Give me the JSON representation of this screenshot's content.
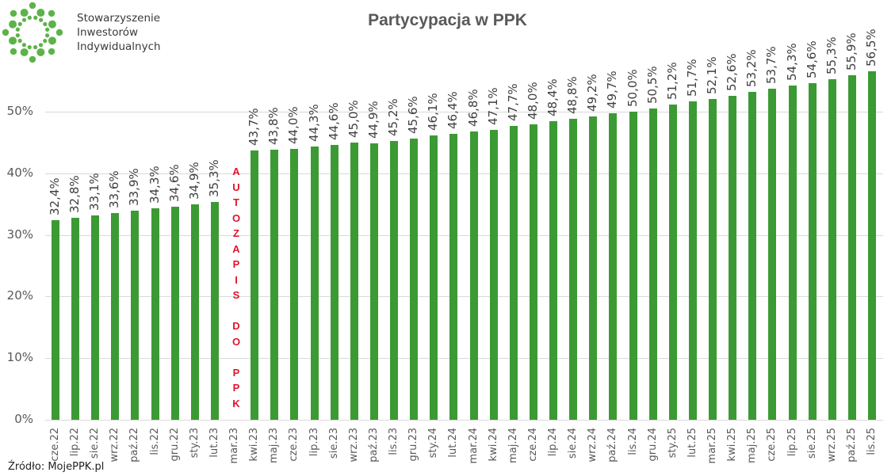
{
  "header": {
    "logo_lines": [
      "Stowarzyszenie",
      "Inwestorów",
      "Indywidualnych"
    ],
    "logo_icon": "ring-of-dots-icon",
    "title": "Partycypacja w PPK"
  },
  "footer": {
    "source": "Źródło: MojePPK.pl"
  },
  "annotation": {
    "letters": [
      "A",
      "U",
      "T",
      "O",
      "Z",
      "A",
      "P",
      "I",
      "S",
      "",
      "D",
      "O",
      "",
      "P",
      "P",
      "K"
    ],
    "text": "AUTOZAPIS DO PPK",
    "color": "#e0142c"
  },
  "colors": {
    "bar": "#3c9a35",
    "grid": "#d9d9d9",
    "annotation": "#e0142c"
  },
  "chart_data": {
    "type": "bar",
    "title": "Partycypacja w PPK",
    "xlabel": "",
    "ylabel": "",
    "ylim": [
      0,
      57
    ],
    "yticks": [
      "0%",
      "10%",
      "20%",
      "30%",
      "40%",
      "50%"
    ],
    "grid": true,
    "legend": null,
    "categories": [
      "cze.22",
      "lip.22",
      "sie.22",
      "wrz.22",
      "paź.22",
      "lis.22",
      "gru.22",
      "sty.23",
      "lut.23",
      "mar.23",
      "kwi.23",
      "maj.23",
      "cze.23",
      "lip.23",
      "sie.23",
      "wrz.23",
      "paź.23",
      "lis.23",
      "gru.23",
      "sty.24",
      "lut.24",
      "mar.24",
      "kwi.24",
      "maj.24",
      "cze.24",
      "lip.24",
      "sie.24",
      "wrz.24",
      "paź.24",
      "lis.24",
      "gru.24",
      "sty.25",
      "lut.25",
      "mar.25",
      "kwi.25",
      "maj.25",
      "cze.25",
      "lip.25",
      "sie.25",
      "wrz.25",
      "paź.25",
      "lis.25"
    ],
    "values": [
      32.4,
      32.8,
      33.1,
      33.6,
      33.9,
      34.3,
      34.6,
      34.9,
      35.3,
      null,
      43.7,
      43.8,
      44.0,
      44.3,
      44.6,
      45.0,
      44.9,
      45.2,
      45.6,
      46.1,
      46.4,
      46.8,
      47.1,
      47.7,
      48.0,
      48.4,
      48.8,
      49.2,
      49.7,
      50.0,
      50.5,
      51.2,
      51.7,
      52.1,
      52.6,
      53.2,
      53.7,
      54.3,
      54.6,
      55.3,
      55.9,
      56.5
    ],
    "labels": [
      "32,4%",
      "32,8%",
      "33,1%",
      "33,6%",
      "33,9%",
      "34,3%",
      "34,6%",
      "34,9%",
      "35,3%",
      "",
      "43,7%",
      "43,8%",
      "44,0%",
      "44,3%",
      "44,6%",
      "45,0%",
      "44,9%",
      "45,2%",
      "45,6%",
      "46,1%",
      "46,4%",
      "46,8%",
      "47,1%",
      "47,7%",
      "48,0%",
      "48,4%",
      "48,8%",
      "49,2%",
      "49,7%",
      "50,0%",
      "50,5%",
      "51,2%",
      "51,7%",
      "52,1%",
      "52,6%",
      "53,2%",
      "53,7%",
      "54,3%",
      "54,6%",
      "55,3%",
      "55,9%",
      "56,5%"
    ],
    "annotations": [
      {
        "category": "mar.23",
        "text": "AUTOZAPIS DO PPK",
        "orientation": "vertical"
      }
    ],
    "source": "Źródło: MojePPK.pl"
  }
}
